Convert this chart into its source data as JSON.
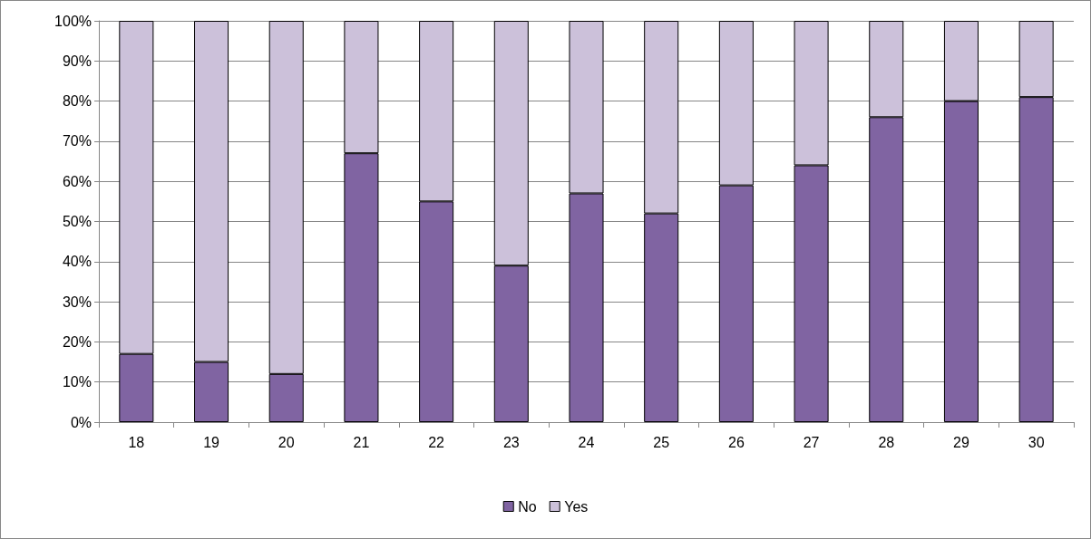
{
  "chart_data": {
    "type": "bar",
    "stacked": true,
    "categories": [
      "18",
      "19",
      "20",
      "21",
      "22",
      "23",
      "24",
      "25",
      "26",
      "27",
      "28",
      "29",
      "30"
    ],
    "series": [
      {
        "name": "No",
        "color": "#8064a2",
        "values": [
          17,
          15,
          12,
          67,
          55,
          39,
          57,
          52,
          59,
          64,
          76,
          80,
          81
        ]
      },
      {
        "name": "Yes",
        "color": "#ccc1da",
        "values": [
          83,
          85,
          88,
          33,
          45,
          61,
          43,
          48,
          41,
          36,
          24,
          20,
          19
        ]
      }
    ],
    "ylim": [
      0,
      100
    ],
    "yticks": [
      {
        "value": 0,
        "label": "0%"
      },
      {
        "value": 10,
        "label": "10%"
      },
      {
        "value": 20,
        "label": "20%"
      },
      {
        "value": 30,
        "label": "30%"
      },
      {
        "value": 40,
        "label": "40%"
      },
      {
        "value": 50,
        "label": "50%"
      },
      {
        "value": 60,
        "label": "60%"
      },
      {
        "value": 70,
        "label": "70%"
      },
      {
        "value": 80,
        "label": "80%"
      },
      {
        "value": 90,
        "label": "90%"
      },
      {
        "value": 100,
        "label": "100%"
      }
    ],
    "grid": "y",
    "legend": "bottom"
  }
}
